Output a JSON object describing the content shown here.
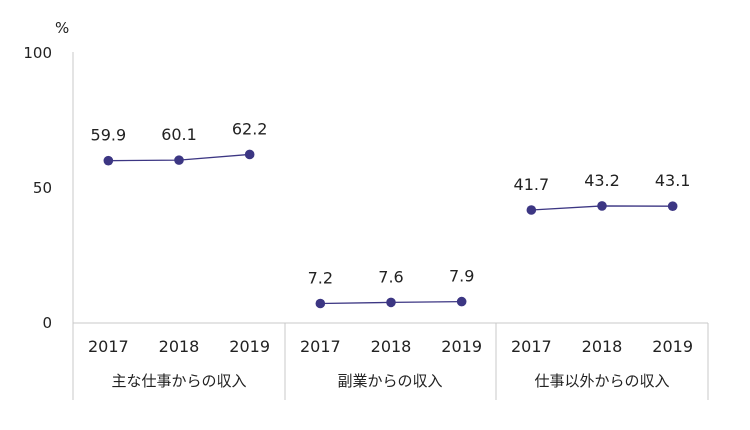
{
  "chart_data": {
    "type": "line",
    "unit": "%",
    "ylim": [
      0,
      100
    ],
    "yticks": [
      "0",
      "50",
      "100"
    ],
    "grid": false,
    "series_color": "#3c3683",
    "groups": [
      {
        "label": "主な仕事からの収入",
        "years": [
          "2017",
          "2018",
          "2019"
        ],
        "values": [
          59.9,
          60.1,
          62.2
        ],
        "labels": [
          "59.9",
          "60.1",
          "62.2"
        ]
      },
      {
        "label": "副業からの収入",
        "years": [
          "2017",
          "2018",
          "2019"
        ],
        "values": [
          7.2,
          7.6,
          7.9
        ],
        "labels": [
          "7.2",
          "7.6",
          "7.9"
        ]
      },
      {
        "label": "仕事以外からの収入",
        "years": [
          "2017",
          "2018",
          "2019"
        ],
        "values": [
          41.7,
          43.2,
          43.1
        ],
        "labels": [
          "41.7",
          "43.2",
          "43.1"
        ]
      }
    ]
  }
}
